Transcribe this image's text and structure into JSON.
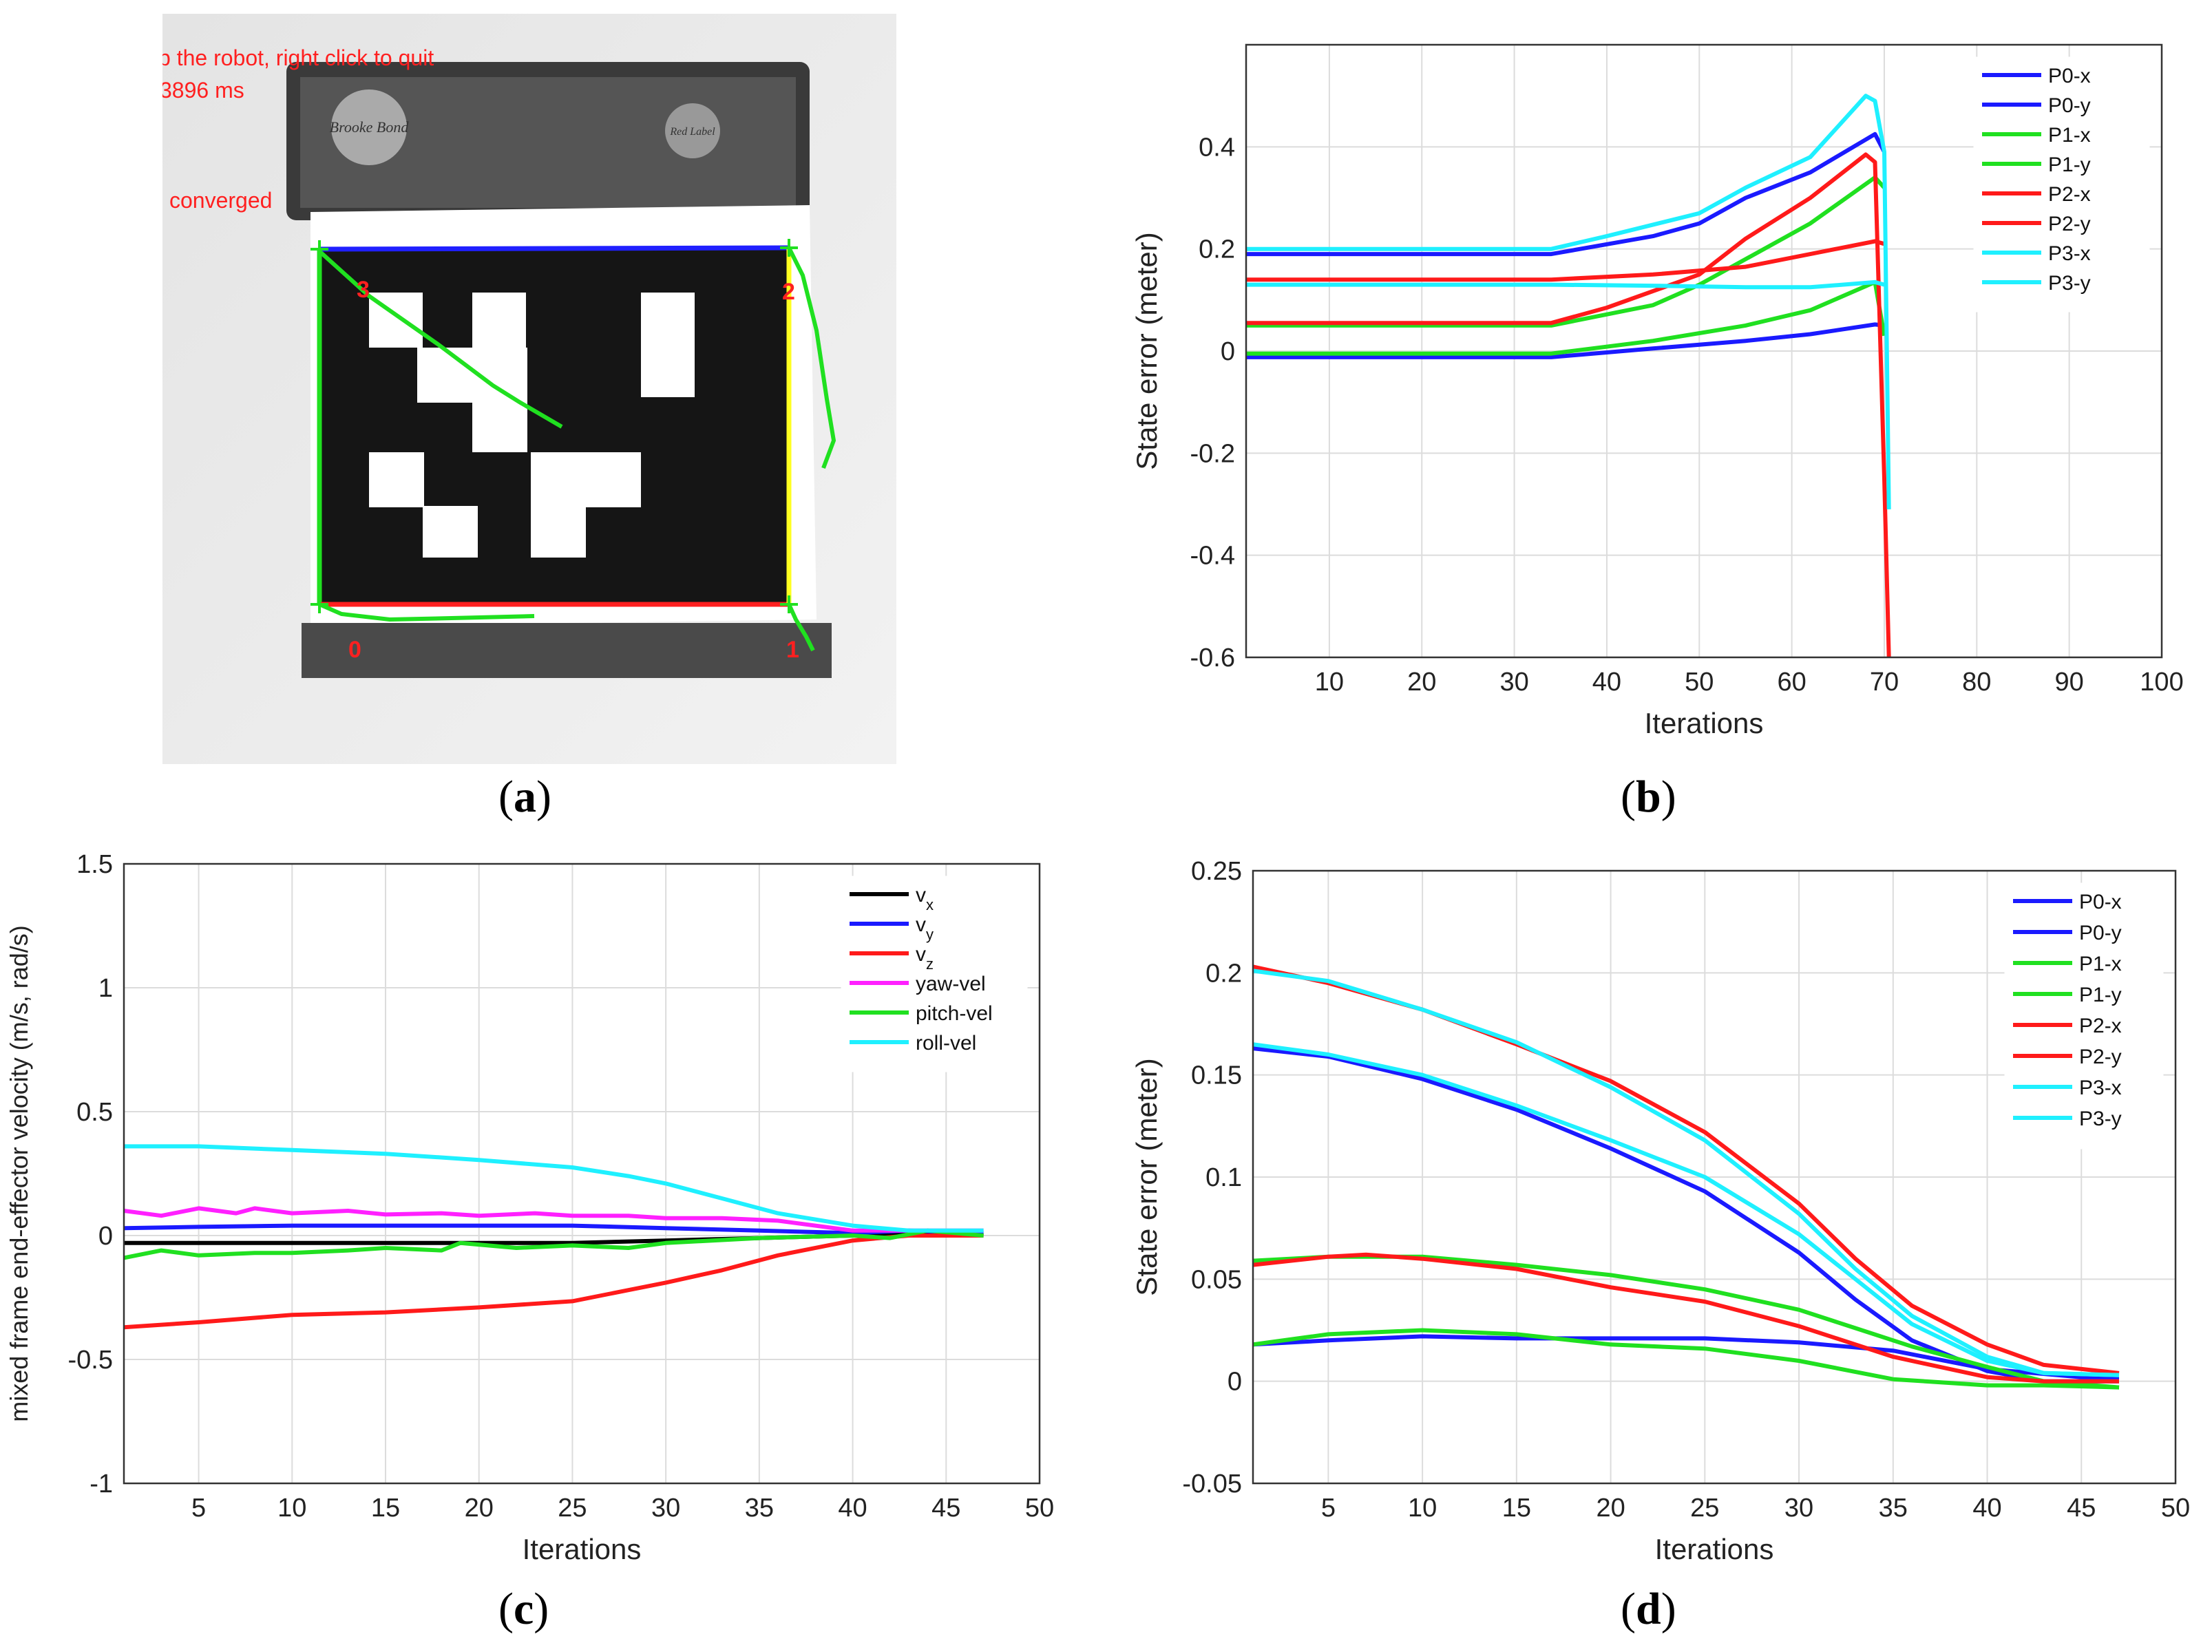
{
  "photo": {
    "overlay_text_1": "p the robot, right click to quit",
    "overlay_text_2": "3896 ms",
    "overlay_text_3": "converged",
    "corner_labels": [
      "0",
      "1",
      "2",
      "3"
    ],
    "logo_1": "Brooke Bond",
    "logo_2": "Red Label"
  },
  "captions": {
    "a": "a",
    "b": "b",
    "c": "c",
    "d": "d"
  },
  "chart_data": [
    {
      "id": "b",
      "type": "line",
      "xlabel": "Iterations",
      "ylabel": "State error (meter)",
      "xlim": [
        1,
        100
      ],
      "ylim": [
        -0.6,
        0.6
      ],
      "xticks": [
        10,
        20,
        30,
        40,
        50,
        60,
        70,
        80,
        90,
        100
      ],
      "yticks": [
        -0.6,
        -0.4,
        -0.2,
        0,
        0.2,
        0.4
      ],
      "grid": true,
      "legend_position": "top-right",
      "colors": [
        "#1a1aff",
        "#1a1aff",
        "#20e020",
        "#20e020",
        "#ff1a1a",
        "#ff1a1a",
        "#1ff0ff",
        "#1ff0ff"
      ],
      "series": [
        {
          "name": "P0-x",
          "x": [
            1,
            34,
            45,
            55,
            62,
            69,
            70
          ],
          "y": [
            -0.012,
            -0.012,
            0.005,
            0.02,
            0.033,
            0.052,
            0.05
          ]
        },
        {
          "name": "P0-y",
          "x": [
            1,
            34,
            45,
            50,
            55,
            62,
            69,
            70
          ],
          "y": [
            0.19,
            0.19,
            0.225,
            0.25,
            0.3,
            0.35,
            0.425,
            0.39
          ]
        },
        {
          "name": "P1-x",
          "x": [
            1,
            34,
            45,
            55,
            62,
            69,
            70
          ],
          "y": [
            -0.005,
            -0.005,
            0.02,
            0.05,
            0.08,
            0.135,
            0.03
          ]
        },
        {
          "name": "P1-y",
          "x": [
            1,
            34,
            45,
            50,
            55,
            62,
            69,
            70
          ],
          "y": [
            0.05,
            0.05,
            0.09,
            0.13,
            0.18,
            0.25,
            0.34,
            0.32
          ]
        },
        {
          "name": "P2-x",
          "x": [
            1,
            34,
            45,
            55,
            62,
            69,
            70
          ],
          "y": [
            0.14,
            0.14,
            0.15,
            0.165,
            0.19,
            0.215,
            0.21
          ]
        },
        {
          "name": "P2-y",
          "x": [
            1,
            34,
            40,
            50,
            55,
            62,
            68,
            69,
            70,
            70.5
          ],
          "y": [
            0.055,
            0.055,
            0.085,
            0.15,
            0.22,
            0.3,
            0.385,
            0.37,
            -0.25,
            -0.6
          ]
        },
        {
          "name": "P3-x",
          "x": [
            1,
            34,
            45,
            55,
            62,
            69,
            70
          ],
          "y": [
            0.13,
            0.13,
            0.128,
            0.125,
            0.125,
            0.135,
            0.13
          ]
        },
        {
          "name": "P3-y",
          "x": [
            1,
            34,
            40,
            50,
            55,
            62,
            68,
            69,
            70,
            70.5
          ],
          "y": [
            0.2,
            0.2,
            0.225,
            0.27,
            0.32,
            0.38,
            0.5,
            0.49,
            0.39,
            -0.31
          ]
        }
      ]
    },
    {
      "id": "c",
      "type": "line",
      "xlabel": "Iterations",
      "ylabel": "mixed frame end-effector velocity (m/s, rad/s)",
      "xlim": [
        1,
        50
      ],
      "ylim": [
        -1,
        1.5
      ],
      "xticks": [
        5,
        10,
        15,
        20,
        25,
        30,
        35,
        40,
        45,
        50
      ],
      "yticks": [
        -1,
        -0.5,
        0,
        0.5,
        1,
        1.5
      ],
      "grid": true,
      "legend_position": "top-right",
      "colors": [
        "#000000",
        "#1a1aff",
        "#ff1a1a",
        "#ff20ff",
        "#20e020",
        "#1ff0ff"
      ],
      "series": [
        {
          "name": "v",
          "subscript": "x",
          "x": [
            1,
            5,
            10,
            15,
            20,
            25,
            30,
            35,
            40,
            43,
            47
          ],
          "y": [
            -0.03,
            -0.03,
            -0.03,
            -0.03,
            -0.03,
            -0.03,
            -0.02,
            -0.01,
            0.0,
            0.01,
            0.0
          ]
        },
        {
          "name": "v",
          "subscript": "y",
          "x": [
            1,
            5,
            10,
            15,
            20,
            25,
            30,
            35,
            40,
            43,
            47
          ],
          "y": [
            0.03,
            0.035,
            0.04,
            0.04,
            0.04,
            0.04,
            0.03,
            0.02,
            0.01,
            0.02,
            0.01
          ]
        },
        {
          "name": "v",
          "subscript": "z",
          "x": [
            1,
            5,
            10,
            15,
            20,
            25,
            28,
            30,
            33,
            36,
            40,
            43,
            47
          ],
          "y": [
            -0.37,
            -0.35,
            -0.32,
            -0.31,
            -0.29,
            -0.265,
            -0.22,
            -0.19,
            -0.14,
            -0.08,
            -0.02,
            0.0,
            0.0
          ]
        },
        {
          "name": "yaw-vel",
          "x": [
            1,
            3,
            5,
            7,
            8,
            10,
            13,
            15,
            18,
            20,
            23,
            25,
            28,
            30,
            33,
            36,
            40,
            43,
            47
          ],
          "y": [
            0.1,
            0.08,
            0.11,
            0.09,
            0.11,
            0.09,
            0.1,
            0.085,
            0.09,
            0.08,
            0.09,
            0.08,
            0.08,
            0.07,
            0.07,
            0.06,
            0.02,
            0.02,
            0.02
          ]
        },
        {
          "name": "pitch-vel",
          "x": [
            1,
            3,
            5,
            8,
            10,
            13,
            15,
            18,
            19,
            22,
            25,
            28,
            30,
            35,
            40,
            42,
            44,
            47
          ],
          "y": [
            -0.09,
            -0.06,
            -0.08,
            -0.07,
            -0.07,
            -0.06,
            -0.05,
            -0.06,
            -0.03,
            -0.05,
            -0.04,
            -0.05,
            -0.03,
            -0.01,
            0.0,
            -0.01,
            0.02,
            0.0
          ]
        },
        {
          "name": "roll-vel",
          "x": [
            1,
            5,
            10,
            15,
            20,
            25,
            28,
            30,
            33,
            36,
            40,
            43,
            47
          ],
          "y": [
            0.36,
            0.36,
            0.345,
            0.33,
            0.305,
            0.275,
            0.24,
            0.21,
            0.15,
            0.09,
            0.04,
            0.02,
            0.02
          ]
        }
      ]
    },
    {
      "id": "d",
      "type": "line",
      "xlabel": "Iterations",
      "ylabel": "State error (meter)",
      "xlim": [
        1,
        50
      ],
      "ylim": [
        -0.05,
        0.25
      ],
      "xticks": [
        5,
        10,
        15,
        20,
        25,
        30,
        35,
        40,
        45,
        50
      ],
      "yticks": [
        -0.05,
        0,
        0.05,
        0.1,
        0.15,
        0.2,
        0.25
      ],
      "grid": true,
      "legend_position": "top-right",
      "colors": [
        "#1a1aff",
        "#1a1aff",
        "#20e020",
        "#20e020",
        "#ff1a1a",
        "#ff1a1a",
        "#1ff0ff",
        "#1ff0ff"
      ],
      "series": [
        {
          "name": "P0-x",
          "x": [
            1,
            5,
            10,
            15,
            20,
            25,
            30,
            35,
            40,
            45,
            47
          ],
          "y": [
            0.018,
            0.02,
            0.022,
            0.021,
            0.021,
            0.021,
            0.019,
            0.015,
            0.006,
            0.002,
            0.002
          ]
        },
        {
          "name": "P0-y",
          "x": [
            1,
            5,
            10,
            15,
            20,
            25,
            30,
            33,
            36,
            40,
            43,
            47
          ],
          "y": [
            0.163,
            0.159,
            0.148,
            0.133,
            0.114,
            0.093,
            0.063,
            0.04,
            0.02,
            0.005,
            0.0,
            0.0
          ]
        },
        {
          "name": "P1-x",
          "x": [
            1,
            5,
            10,
            15,
            20,
            25,
            30,
            33,
            36,
            40,
            43,
            47
          ],
          "y": [
            0.059,
            0.061,
            0.061,
            0.057,
            0.052,
            0.045,
            0.035,
            0.026,
            0.017,
            0.007,
            0.0,
            -0.003
          ]
        },
        {
          "name": "P1-y",
          "x": [
            1,
            5,
            10,
            15,
            20,
            25,
            30,
            35,
            40,
            43,
            47
          ],
          "y": [
            0.018,
            0.023,
            0.025,
            0.023,
            0.018,
            0.016,
            0.01,
            0.001,
            -0.002,
            -0.002,
            -0.003
          ]
        },
        {
          "name": "P2-x",
          "x": [
            1,
            5,
            10,
            15,
            20,
            25,
            30,
            33,
            36,
            40,
            43,
            47
          ],
          "y": [
            0.203,
            0.195,
            0.182,
            0.165,
            0.147,
            0.122,
            0.087,
            0.06,
            0.037,
            0.018,
            0.008,
            0.004
          ]
        },
        {
          "name": "P2-y",
          "x": [
            1,
            5,
            7,
            10,
            15,
            20,
            25,
            30,
            35,
            40,
            43,
            47
          ],
          "y": [
            0.057,
            0.061,
            0.062,
            0.06,
            0.055,
            0.046,
            0.039,
            0.027,
            0.012,
            0.002,
            0.0,
            0.0
          ]
        },
        {
          "name": "P3-x",
          "x": [
            1,
            5,
            10,
            15,
            20,
            25,
            30,
            33,
            36,
            40,
            43,
            47
          ],
          "y": [
            0.165,
            0.16,
            0.15,
            0.135,
            0.118,
            0.1,
            0.072,
            0.05,
            0.028,
            0.01,
            0.004,
            0.003
          ]
        },
        {
          "name": "P3-y",
          "x": [
            1,
            5,
            10,
            15,
            20,
            25,
            30,
            33,
            36,
            40,
            43,
            47
          ],
          "y": [
            0.201,
            0.196,
            0.182,
            0.166,
            0.144,
            0.118,
            0.082,
            0.055,
            0.032,
            0.012,
            0.004,
            0.003
          ]
        }
      ]
    }
  ]
}
